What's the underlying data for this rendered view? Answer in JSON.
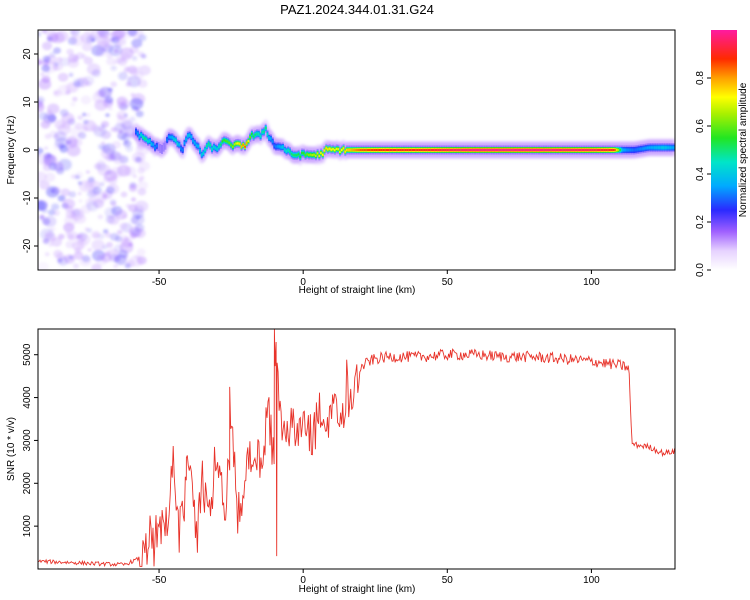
{
  "title": "PAZ1.2024.344.01.31.G24",
  "colors": {
    "snr_line": "#e8332a",
    "frame": "#000000",
    "speckle": "#8a3cf0"
  },
  "chart_data": [
    {
      "type": "heatmap",
      "xlabel": "Height of straight line (km)",
      "ylabel": "Frequency (Hz)",
      "xlim": [
        -92,
        129
      ],
      "ylim": [
        -25,
        25
      ],
      "x_ticks": [
        -50,
        0,
        50,
        100
      ],
      "x_tick_labels": [
        "-50",
        "0",
        "50",
        "100"
      ],
      "y_ticks": [
        -20,
        -10,
        0,
        10,
        20
      ],
      "y_tick_labels": [
        "-20",
        "-10",
        "0",
        "10",
        "20"
      ],
      "colorbar": {
        "label": "Normalized spectral amplitude",
        "range": [
          0,
          1
        ],
        "ticks": [
          0.0,
          0.2,
          0.4,
          0.6,
          0.8
        ],
        "tick_labels": [
          "0.0",
          "0.2",
          "0.4",
          "0.6",
          "0.8"
        ],
        "colormap": "rainbow"
      },
      "noise_region_x": [
        -92,
        -57
      ],
      "ridge": {
        "x": [
          -58,
          -55,
          -52,
          -49,
          -46,
          -44,
          -42,
          -40,
          -38,
          -35,
          -33,
          -30,
          -28,
          -25,
          -22,
          -20,
          -18,
          -15,
          -13,
          -12,
          -10,
          -7,
          -4,
          0,
          3,
          6,
          8,
          12,
          15,
          20,
          30,
          40,
          60,
          80,
          100,
          108,
          111,
          115,
          120,
          125,
          129
        ],
        "freq": [
          3.5,
          2.5,
          1,
          0,
          3,
          2,
          0,
          3,
          2,
          -1,
          1,
          0,
          2,
          1,
          1,
          1,
          3,
          3,
          4.5,
          3,
          1,
          0.5,
          -1,
          -1,
          -1,
          -1,
          0,
          0,
          0,
          0,
          0,
          0,
          0,
          0,
          0,
          0,
          0,
          0,
          0.5,
          0.5,
          0.5
        ],
        "amp": [
          0.3,
          0.5,
          0.35,
          0.25,
          0.35,
          0.45,
          0.3,
          0.4,
          0.35,
          0.4,
          0.5,
          0.4,
          0.55,
          0.6,
          0.75,
          0.85,
          0.55,
          0.45,
          0.5,
          0.4,
          0.3,
          0.4,
          0.5,
          0.55,
          0.65,
          0.7,
          0.75,
          0.7,
          0.75,
          0.85,
          0.9,
          0.9,
          0.98,
          0.98,
          0.95,
          0.9,
          0.35,
          0.3,
          0.35,
          0.4,
          0.35
        ]
      }
    },
    {
      "type": "line",
      "xlabel": "Height of straight line (km)",
      "ylabel": "SNR (10 * v/v)",
      "xlim": [
        -92,
        129
      ],
      "ylim": [
        0,
        5600
      ],
      "x_ticks": [
        -50,
        0,
        50,
        100
      ],
      "x_tick_labels": [
        "-50",
        "0",
        "50",
        "100"
      ],
      "y_ticks": [
        1000,
        2000,
        3000,
        4000,
        5000
      ],
      "y_tick_labels": [
        "1000",
        "2000",
        "3000",
        "4000",
        "5000"
      ],
      "series": [
        {
          "x": [
            -92,
            -80,
            -70,
            -62,
            -55,
            -50,
            -47,
            -45,
            -43,
            -40,
            -37,
            -35,
            -32,
            -30,
            -27,
            -25,
            -22,
            -20,
            -17,
            -15,
            -12,
            -10,
            -9.5,
            -8,
            -5,
            -2,
            0,
            3,
            5,
            8,
            10,
            13,
            15,
            18,
            20,
            23,
            25,
            30,
            40,
            50,
            60,
            70,
            80,
            90,
            100,
            110,
            113,
            114,
            115,
            120,
            125,
            129
          ],
          "y": [
            180,
            150,
            120,
            100,
            300,
            900,
            1200,
            2600,
            1100,
            2400,
            900,
            2100,
            1500,
            2500,
            1300,
            3200,
            1200,
            2400,
            2800,
            2500,
            3300,
            3000,
            5600,
            3400,
            3600,
            2900,
            3500,
            2800,
            3800,
            3200,
            3900,
            3500,
            4100,
            4400,
            4700,
            4850,
            4900,
            4950,
            4950,
            5000,
            5000,
            4950,
            4950,
            4900,
            4850,
            4750,
            4700,
            2950,
            2900,
            2850,
            2700,
            2750
          ]
        }
      ]
    }
  ]
}
